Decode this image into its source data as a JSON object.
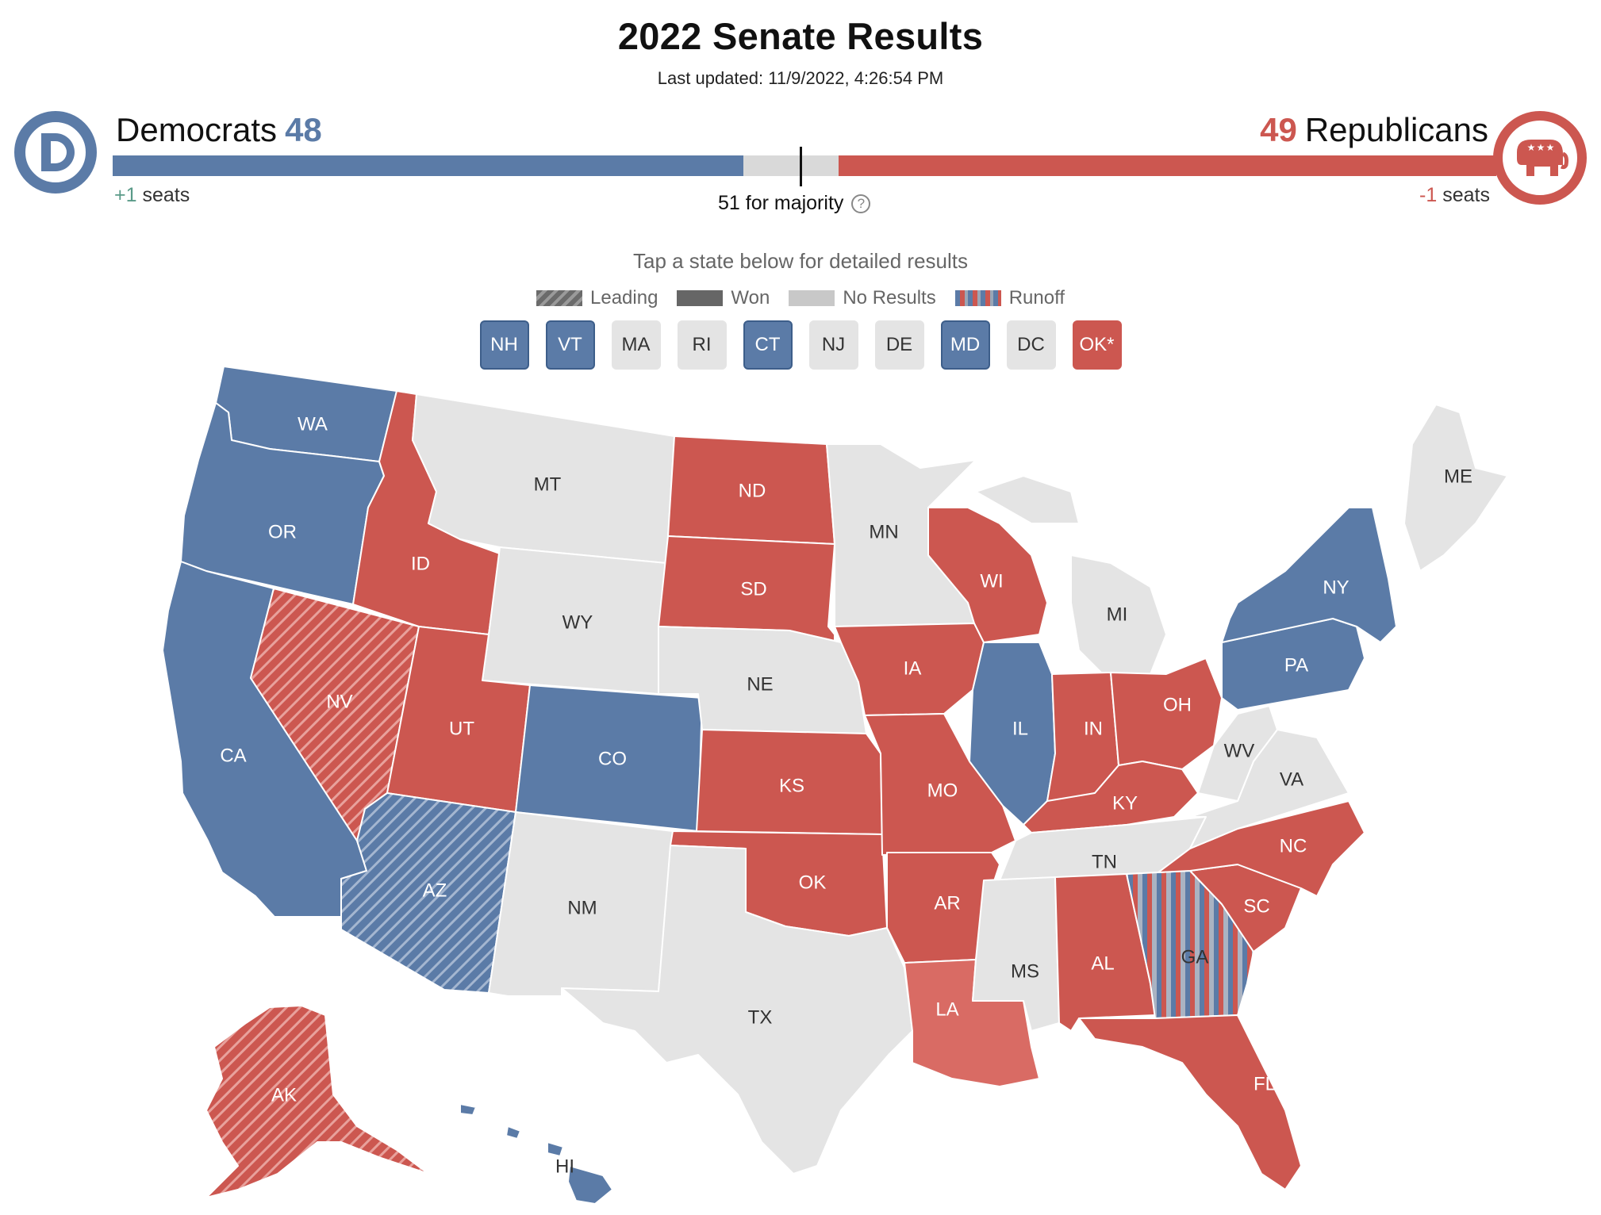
{
  "title": "2022 Senate Results",
  "updated": "Last updated: 11/9/2022, 4:26:54 PM",
  "dem": {
    "name": "Democrats",
    "seats": "48",
    "delta": "+1",
    "delta_label": "seats",
    "logo": "democrat-donkey-d-logo",
    "color": "#5b7ba7",
    "share": 0.48
  },
  "rep": {
    "name": "Republicans",
    "seats": "49",
    "delta": "-1",
    "delta_label": "seats",
    "logo": "republican-elephant-logo",
    "color": "#cc5750",
    "share": 0.49
  },
  "majority": {
    "label": "51 for majority",
    "icon": "help-circle-icon",
    "threshold": 51
  },
  "tap_hint": "Tap a state below for detailed results",
  "legend": [
    {
      "key": "leading",
      "label": "Leading"
    },
    {
      "key": "won",
      "label": "Won"
    },
    {
      "key": "nores",
      "label": "No Results"
    },
    {
      "key": "runoff",
      "label": "Runoff"
    }
  ],
  "small_states": [
    {
      "code": "NH",
      "status": "dem"
    },
    {
      "code": "VT",
      "status": "dem"
    },
    {
      "code": "MA",
      "status": "none"
    },
    {
      "code": "RI",
      "status": "none"
    },
    {
      "code": "CT",
      "status": "dem"
    },
    {
      "code": "NJ",
      "status": "none"
    },
    {
      "code": "DE",
      "status": "none"
    },
    {
      "code": "MD",
      "status": "dem"
    },
    {
      "code": "DC",
      "status": "none"
    },
    {
      "code": "OK*",
      "status": "rep"
    }
  ],
  "colors": {
    "dem": "#5b7ba7",
    "rep": "#cc5750",
    "rep_light": "#d96b64",
    "none": "#e4e4e4"
  },
  "states": [
    {
      "code": "WA",
      "status": "dem"
    },
    {
      "code": "OR",
      "status": "dem"
    },
    {
      "code": "CA",
      "status": "dem"
    },
    {
      "code": "NV",
      "status": "rep-leading"
    },
    {
      "code": "ID",
      "status": "rep"
    },
    {
      "code": "MT",
      "status": "none"
    },
    {
      "code": "WY",
      "status": "none"
    },
    {
      "code": "UT",
      "status": "rep"
    },
    {
      "code": "AZ",
      "status": "dem-leading"
    },
    {
      "code": "CO",
      "status": "dem"
    },
    {
      "code": "NM",
      "status": "none"
    },
    {
      "code": "ND",
      "status": "rep"
    },
    {
      "code": "SD",
      "status": "rep"
    },
    {
      "code": "NE",
      "status": "none"
    },
    {
      "code": "KS",
      "status": "rep"
    },
    {
      "code": "OK",
      "status": "rep"
    },
    {
      "code": "TX",
      "status": "none"
    },
    {
      "code": "MN",
      "status": "none"
    },
    {
      "code": "IA",
      "status": "rep"
    },
    {
      "code": "MO",
      "status": "rep"
    },
    {
      "code": "AR",
      "status": "rep"
    },
    {
      "code": "LA",
      "status": "rep-light"
    },
    {
      "code": "WI",
      "status": "rep"
    },
    {
      "code": "IL",
      "status": "dem"
    },
    {
      "code": "MI",
      "status": "none"
    },
    {
      "code": "IN",
      "status": "rep"
    },
    {
      "code": "OH",
      "status": "rep"
    },
    {
      "code": "KY",
      "status": "rep"
    },
    {
      "code": "TN",
      "status": "none"
    },
    {
      "code": "MS",
      "status": "none"
    },
    {
      "code": "AL",
      "status": "rep"
    },
    {
      "code": "GA",
      "status": "runoff"
    },
    {
      "code": "FL",
      "status": "rep"
    },
    {
      "code": "SC",
      "status": "rep"
    },
    {
      "code": "NC",
      "status": "rep"
    },
    {
      "code": "VA",
      "status": "none"
    },
    {
      "code": "WV",
      "status": "none"
    },
    {
      "code": "PA",
      "status": "dem"
    },
    {
      "code": "NY",
      "status": "dem"
    },
    {
      "code": "ME",
      "status": "none"
    },
    {
      "code": "AK",
      "status": "rep-leading"
    },
    {
      "code": "HI",
      "status": "dem"
    }
  ]
}
